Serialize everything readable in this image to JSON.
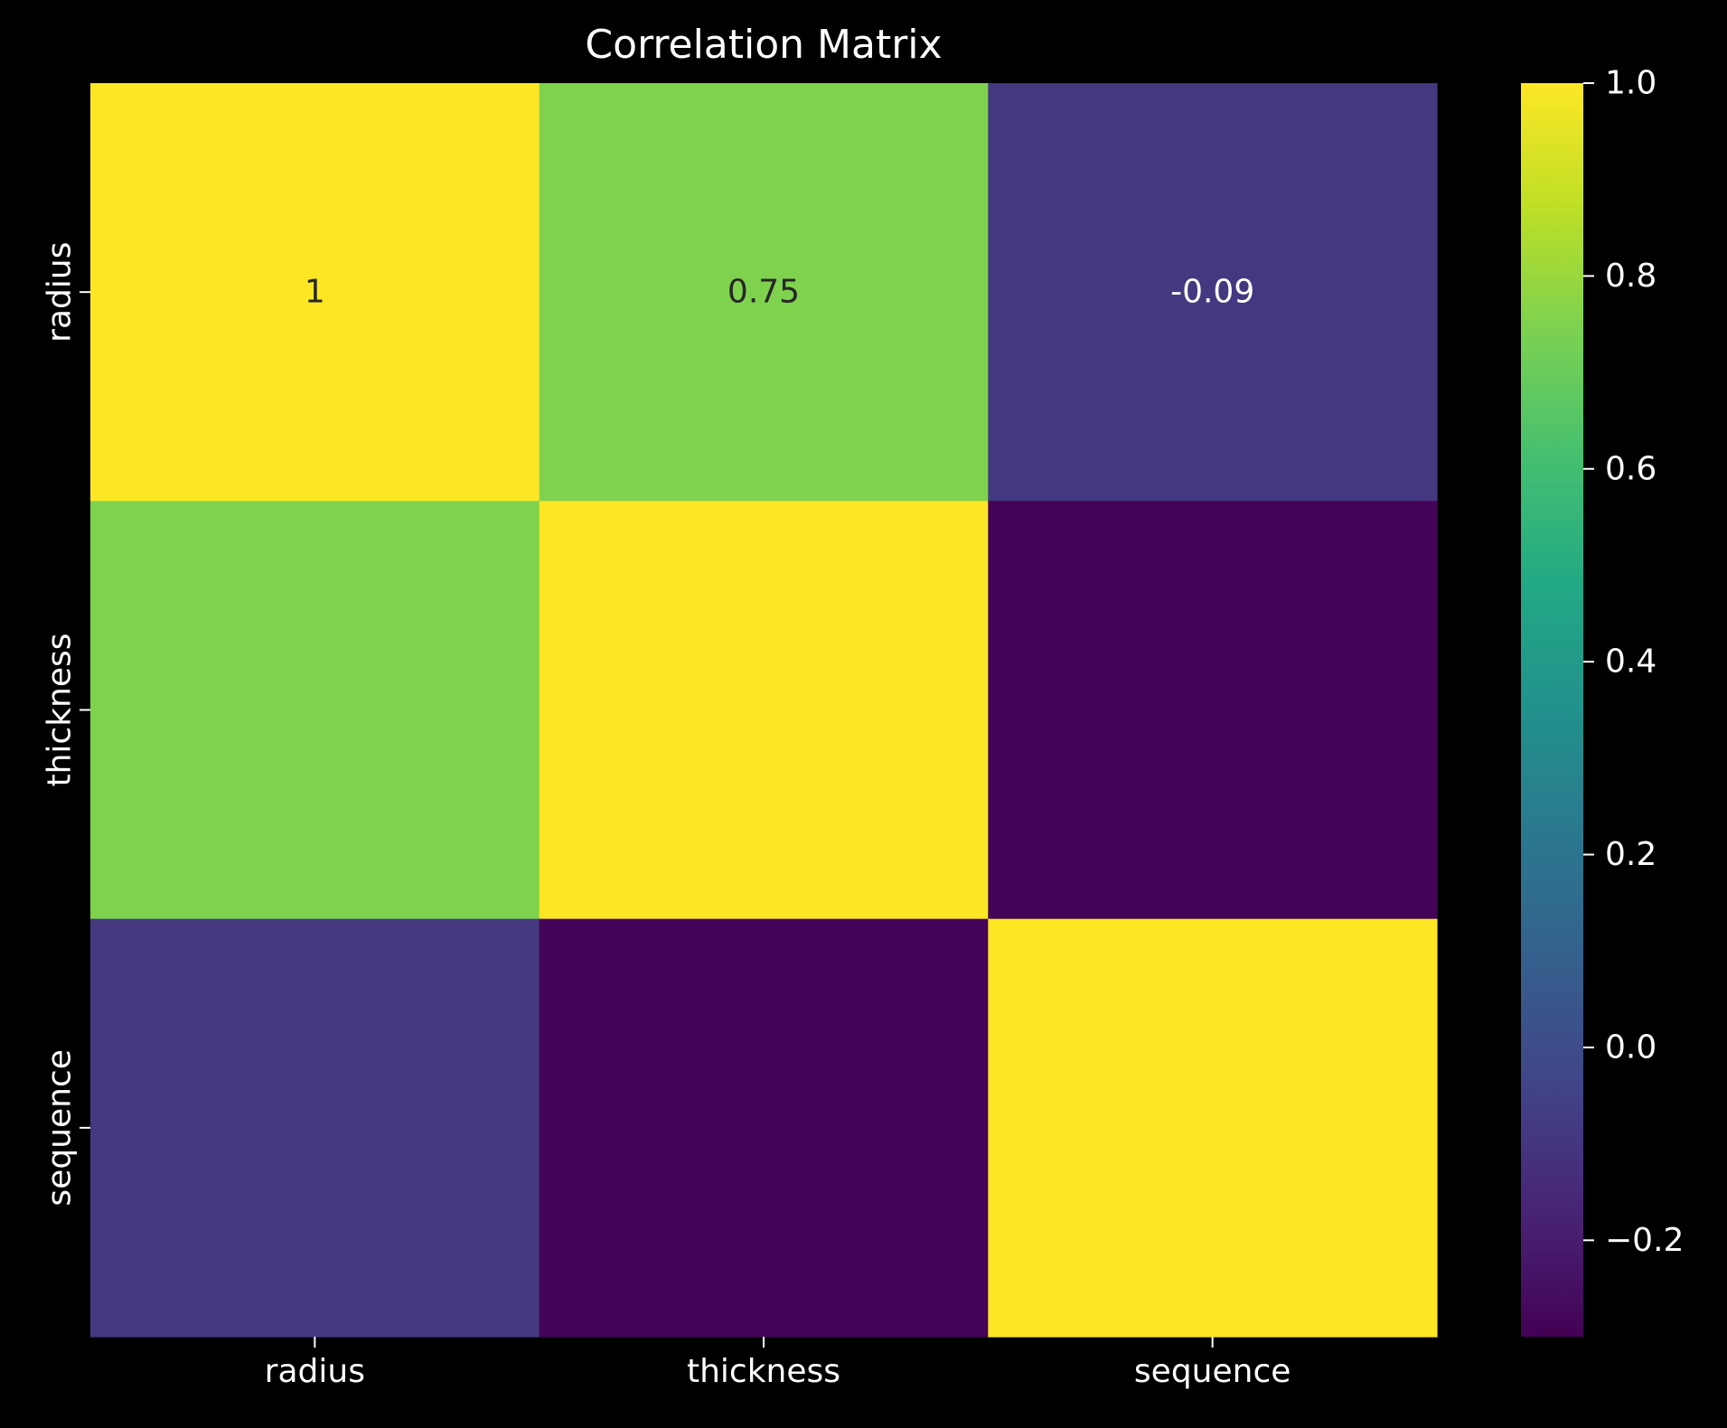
{
  "chart_data": {
    "type": "heatmap",
    "title": "Correlation Matrix",
    "x_categories": [
      "radius",
      "thickness",
      "sequence"
    ],
    "y_categories": [
      "radius",
      "thickness",
      "sequence"
    ],
    "values": [
      [
        1.0,
        0.75,
        -0.09
      ],
      [
        0.75,
        1.0,
        -0.29
      ],
      [
        -0.09,
        -0.29,
        1.0
      ]
    ],
    "annotations": [
      [
        "1",
        "0.75",
        "-0.09"
      ],
      [
        "",
        "",
        ""
      ],
      [
        "",
        "",
        ""
      ]
    ],
    "colormap": "viridis",
    "vmin": -0.3,
    "vmax": 1.0,
    "colorbar_ticks": [
      -0.2,
      0.0,
      0.2,
      0.4,
      0.6,
      0.8,
      1.0
    ],
    "colorbar_tick_labels": [
      "−0.2",
      "0.0",
      "0.2",
      "0.4",
      "0.6",
      "0.8",
      "1.0"
    ],
    "background_color": "#000000",
    "text_color": "#ffffff"
  }
}
